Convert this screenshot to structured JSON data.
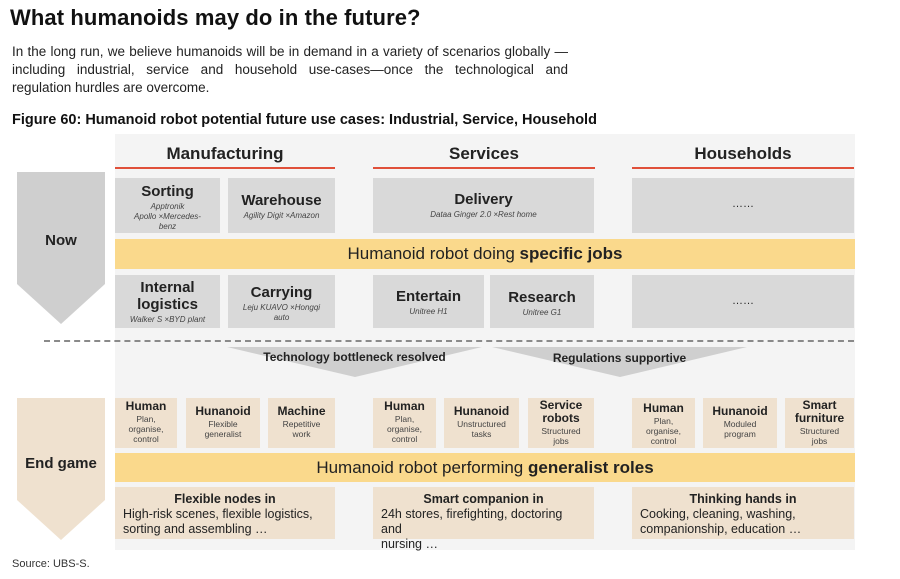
{
  "page": {
    "title": "What humanoids may do in the future?",
    "intro": "In the long run, we believe humanoids will be in demand in a variety of scenarios globally —including industrial, service and household use-cases—once the technological and regulation hurdles are overcome.",
    "figure_caption": "Figure 60: Humanoid robot potential future use cases: Industrial, Service, Household",
    "source": "Source: UBS-S."
  },
  "colors": {
    "accent_line": "#e0503a",
    "gold_band": "#fad98c",
    "grey_card": "#d9d9d9",
    "beige_card": "#efe1cf",
    "arrow_grey": "#cfcfcf",
    "arrow_beige": "#efe1cf"
  },
  "sections": {
    "manufacturing": "Manufacturing",
    "services": "Services",
    "households": "Households"
  },
  "now": {
    "label": "Now",
    "band_prefix": "Humanoid robot doing ",
    "band_bold": "specific jobs",
    "top_row": {
      "sorting": {
        "title": "Sorting",
        "sub1": "Apptronik",
        "sub2": "Apollo ×Mercedes-",
        "sub3": "benz"
      },
      "warehouse": {
        "title": "Warehouse",
        "sub1": "Agility Digit ×Amazon"
      },
      "delivery": {
        "title": "Delivery",
        "sub1": "Dataa Ginger 2.0 ×Rest home"
      },
      "households_top": {
        "title": "……"
      }
    },
    "bottom_row": {
      "internal_logistics": {
        "title1": "Internal",
        "title2": "logistics",
        "sub1": "Walker S ×BYD plant"
      },
      "carrying": {
        "title": "Carrying",
        "sub1": "Leju KUAVO ×Hongqi",
        "sub2": "auto"
      },
      "entertain": {
        "title": "Entertain",
        "sub1": "Unitree H1"
      },
      "research": {
        "title": "Research",
        "sub1": "Unitree G1"
      },
      "households_bottom": {
        "title": "……"
      }
    }
  },
  "transitions": {
    "left": "Technology bottleneck resolved",
    "right": "Regulations supportive"
  },
  "end_game": {
    "label": "End game",
    "band_prefix": "Humanoid robot performing ",
    "band_bold": "generalist roles",
    "manufacturing": [
      {
        "title": "Human",
        "sub": [
          "Plan,",
          "organise,",
          "control"
        ]
      },
      {
        "title": "Hunanoid",
        "sub": [
          "Flexible",
          "generalist"
        ]
      },
      {
        "title": "Machine",
        "sub": [
          "Repetitive",
          "work"
        ]
      }
    ],
    "services": [
      {
        "title": "Human",
        "sub": [
          "Plan,",
          "organise,",
          "control"
        ]
      },
      {
        "title": "Hunanoid",
        "sub": [
          "Unstructured",
          "tasks"
        ]
      },
      {
        "title": "Service",
        "title2": "robots",
        "sub": [
          "Structured",
          "jobs"
        ]
      }
    ],
    "households": [
      {
        "title": "Human",
        "sub": [
          "Plan,",
          "organise,",
          "control"
        ]
      },
      {
        "title": "Hunanoid",
        "sub": [
          "Moduled",
          "program"
        ]
      },
      {
        "title": "Smart",
        "title2": "furniture",
        "sub": [
          "Structured",
          "jobs"
        ]
      }
    ],
    "bottom": {
      "manufacturing": {
        "title": "Flexible nodes in",
        "line1": "High-risk scenes, flexible logistics,",
        "line2": "sorting and assembling …"
      },
      "services": {
        "title": "Smart companion in",
        "line1": "24h stores, firefighting, doctoring and",
        "line2": "nursing …"
      },
      "households": {
        "title": "Thinking hands in",
        "line1": "Cooking, cleaning, washing,",
        "line2": "companionship, education …"
      }
    }
  }
}
